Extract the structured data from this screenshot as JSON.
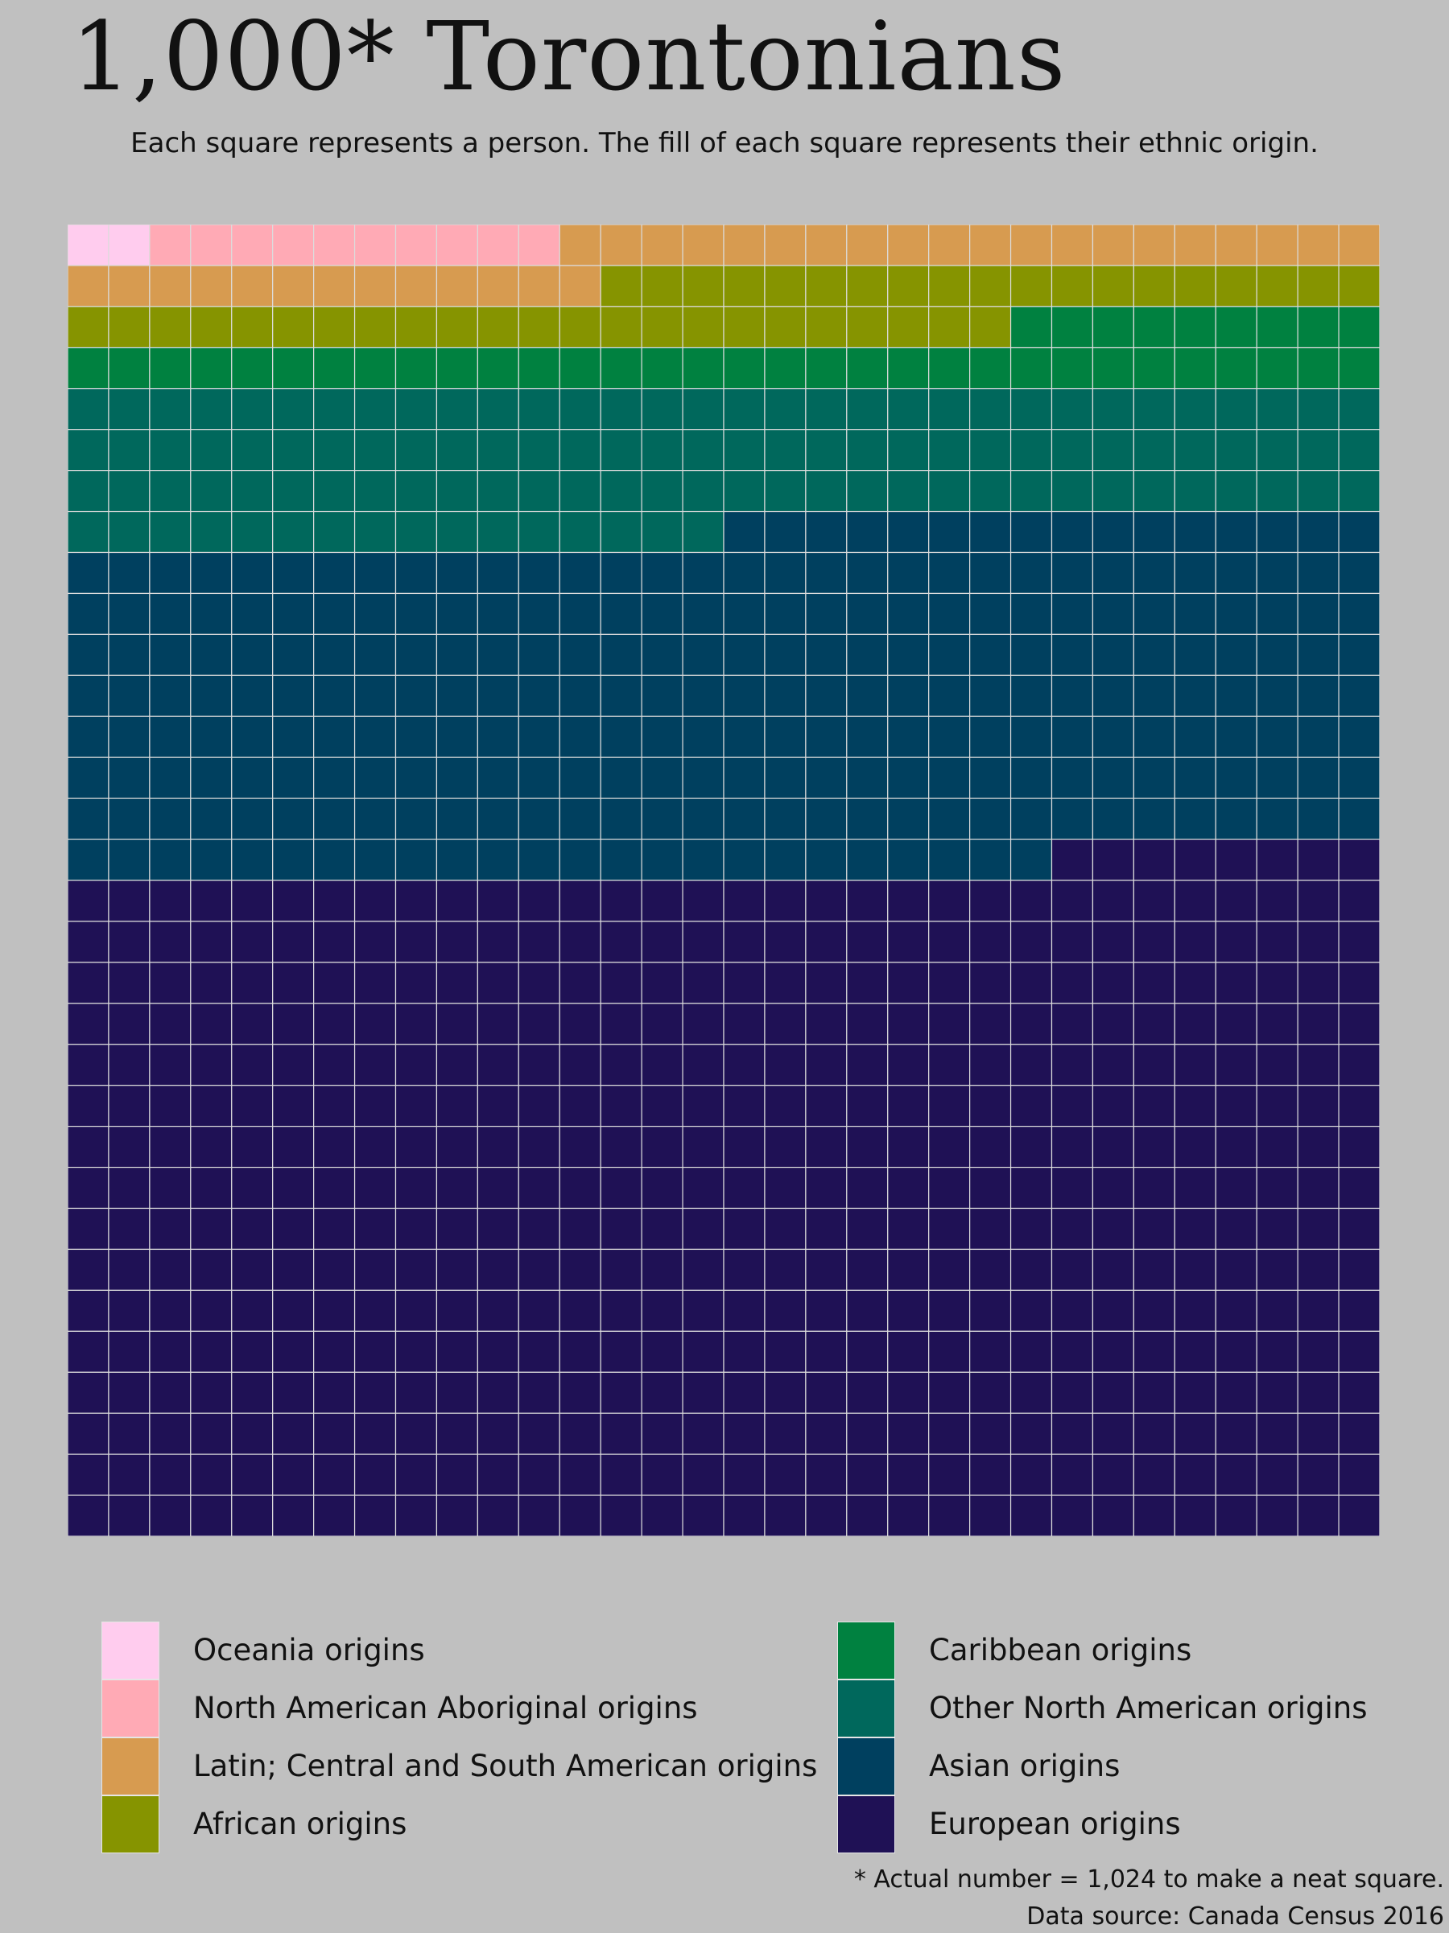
{
  "chart_data": {
    "type": "waffle",
    "title": "1,000* Torontonians",
    "subtitle": "Each square represents a person. The fill of each square represents their ethnic origin.",
    "grid": {
      "rows": 32,
      "cols": 32
    },
    "fill_order": "row-major from top-left",
    "categories": [
      {
        "name": "Oceania origins",
        "count": 2,
        "color": "#ffccee"
      },
      {
        "name": "North American Aboriginal origins",
        "count": 10,
        "color": "#ffaab5"
      },
      {
        "name": "Latin; Central and South American origins",
        "count": 33,
        "color": "#d79b50"
      },
      {
        "name": "African origins",
        "count": 42,
        "color": "#869400"
      },
      {
        "name": "Caribbean origins",
        "count": 41,
        "color": "#008140"
      },
      {
        "name": "Other North American origins",
        "count": 112,
        "color": "#00685c"
      },
      {
        "name": "Asian origins",
        "count": 264,
        "color": "#00405f"
      },
      {
        "name": "European origins",
        "count": 520,
        "color": "#1f1155"
      }
    ],
    "cell_border_color": "#dcdcdc",
    "legend": {
      "position": "bottom",
      "columns": 2
    },
    "footnote": "* Actual number = 1,024 to make a neat square.",
    "source": "Data source: Canada Census 2016"
  },
  "colors": {
    "background": "#c0c0c0",
    "text": "#111111"
  }
}
